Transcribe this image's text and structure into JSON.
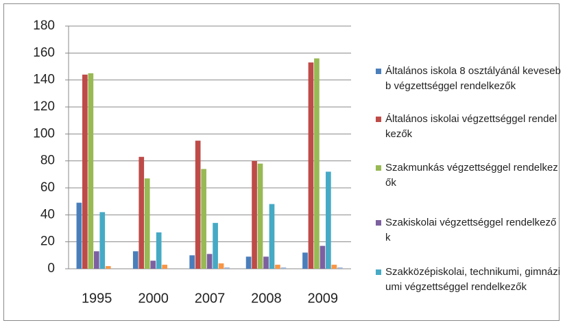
{
  "chart_data": {
    "type": "bar",
    "categories": [
      "1995",
      "2000",
      "2007",
      "2008",
      "2009"
    ],
    "series": [
      {
        "name": "Általános iskola 8 osztályánál kevesebb végzettséggel rendelkezők",
        "color": "#4a7ebb",
        "values": [
          49,
          13,
          10,
          9,
          12
        ]
      },
      {
        "name": "Általános iskolai végzettséggel rendelkezők",
        "color": "#be4b48",
        "values": [
          144,
          83,
          95,
          80,
          153
        ]
      },
      {
        "name": "Szakmunkás végzettséggel rendelkezők",
        "color": "#98b954",
        "values": [
          145,
          67,
          74,
          78,
          156
        ]
      },
      {
        "name": "Szakiskolai végzettséggel rendelkezők",
        "color": "#7d60a0",
        "values": [
          13,
          6,
          11,
          9,
          17
        ]
      },
      {
        "name": "Szakközépiskolai, technikumi, gimnáziumi végzettséggel rendelkezők",
        "color": "#46aac5",
        "values": [
          42,
          27,
          34,
          48,
          72
        ]
      },
      {
        "color": "#f79646",
        "values": [
          2,
          3,
          4,
          3,
          3
        ]
      },
      {
        "color": "#9fb6d8",
        "values": [
          0,
          0,
          1,
          1,
          1
        ]
      }
    ],
    "ylim": [
      0,
      180
    ],
    "yticks": [
      0,
      20,
      40,
      60,
      80,
      100,
      120,
      140,
      160,
      180
    ],
    "grid": true
  }
}
